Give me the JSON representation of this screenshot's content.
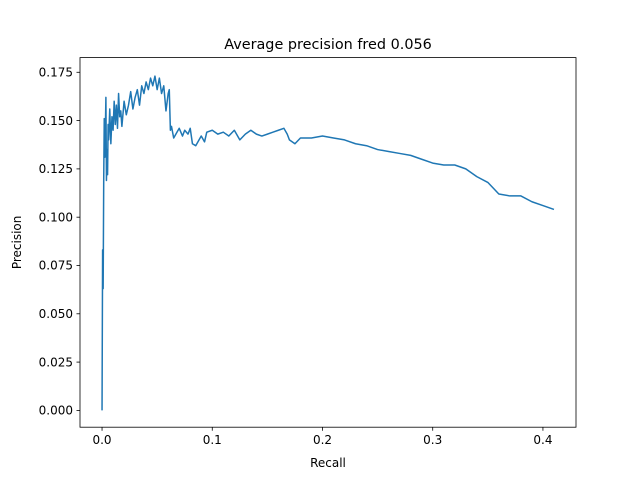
{
  "chart_data": {
    "type": "line",
    "title": "Average precision fred 0.056",
    "xlabel": "Recall",
    "ylabel": "Precision",
    "xlim": [
      -0.02,
      0.43
    ],
    "ylim": [
      -0.0087,
      0.1826
    ],
    "grid": false,
    "legend": "none",
    "x_ticks": [
      0.0,
      0.1,
      0.2,
      0.3,
      0.4
    ],
    "x_tick_labels": [
      "0.0",
      "0.1",
      "0.2",
      "0.3",
      "0.4"
    ],
    "y_ticks": [
      0.0,
      0.025,
      0.05,
      0.075,
      0.1,
      0.125,
      0.15,
      0.175
    ],
    "y_tick_labels": [
      "0.000",
      "0.025",
      "0.050",
      "0.075",
      "0.100",
      "0.125",
      "0.150",
      "0.175"
    ],
    "series": [
      {
        "color": "#1f77b4",
        "x": [
          0.0,
          0.0005,
          0.001,
          0.0015,
          0.002,
          0.0025,
          0.003,
          0.0035,
          0.004,
          0.0045,
          0.005,
          0.0055,
          0.006,
          0.007,
          0.008,
          0.009,
          0.01,
          0.011,
          0.012,
          0.013,
          0.014,
          0.015,
          0.016,
          0.017,
          0.018,
          0.02,
          0.022,
          0.024,
          0.026,
          0.028,
          0.03,
          0.032,
          0.034,
          0.036,
          0.038,
          0.04,
          0.042,
          0.044,
          0.046,
          0.048,
          0.05,
          0.052,
          0.054,
          0.056,
          0.058,
          0.06,
          0.061,
          0.062,
          0.063,
          0.065,
          0.068,
          0.07,
          0.073,
          0.075,
          0.078,
          0.08,
          0.082,
          0.085,
          0.088,
          0.09,
          0.093,
          0.095,
          0.1,
          0.105,
          0.11,
          0.115,
          0.12,
          0.125,
          0.13,
          0.135,
          0.14,
          0.145,
          0.15,
          0.155,
          0.16,
          0.165,
          0.168,
          0.17,
          0.175,
          0.18,
          0.19,
          0.2,
          0.21,
          0.22,
          0.23,
          0.24,
          0.25,
          0.26,
          0.27,
          0.28,
          0.29,
          0.3,
          0.31,
          0.32,
          0.33,
          0.34,
          0.35,
          0.36,
          0.37,
          0.38,
          0.39,
          0.4,
          0.41
        ],
        "y": [
          0.0,
          0.083,
          0.063,
          0.118,
          0.151,
          0.131,
          0.145,
          0.162,
          0.119,
          0.135,
          0.122,
          0.148,
          0.14,
          0.156,
          0.138,
          0.152,
          0.145,
          0.16,
          0.148,
          0.158,
          0.146,
          0.164,
          0.152,
          0.155,
          0.147,
          0.16,
          0.153,
          0.158,
          0.165,
          0.156,
          0.162,
          0.166,
          0.158,
          0.168,
          0.164,
          0.17,
          0.166,
          0.172,
          0.168,
          0.173,
          0.166,
          0.172,
          0.164,
          0.168,
          0.155,
          0.164,
          0.166,
          0.145,
          0.147,
          0.141,
          0.144,
          0.146,
          0.142,
          0.145,
          0.143,
          0.146,
          0.138,
          0.137,
          0.14,
          0.142,
          0.139,
          0.144,
          0.145,
          0.143,
          0.144,
          0.142,
          0.145,
          0.14,
          0.143,
          0.145,
          0.143,
          0.142,
          0.143,
          0.144,
          0.145,
          0.146,
          0.143,
          0.14,
          0.138,
          0.141,
          0.141,
          0.142,
          0.141,
          0.14,
          0.138,
          0.137,
          0.135,
          0.134,
          0.133,
          0.132,
          0.13,
          0.128,
          0.127,
          0.127,
          0.125,
          0.121,
          0.118,
          0.112,
          0.111,
          0.111,
          0.108,
          0.106,
          0.104
        ]
      }
    ]
  }
}
